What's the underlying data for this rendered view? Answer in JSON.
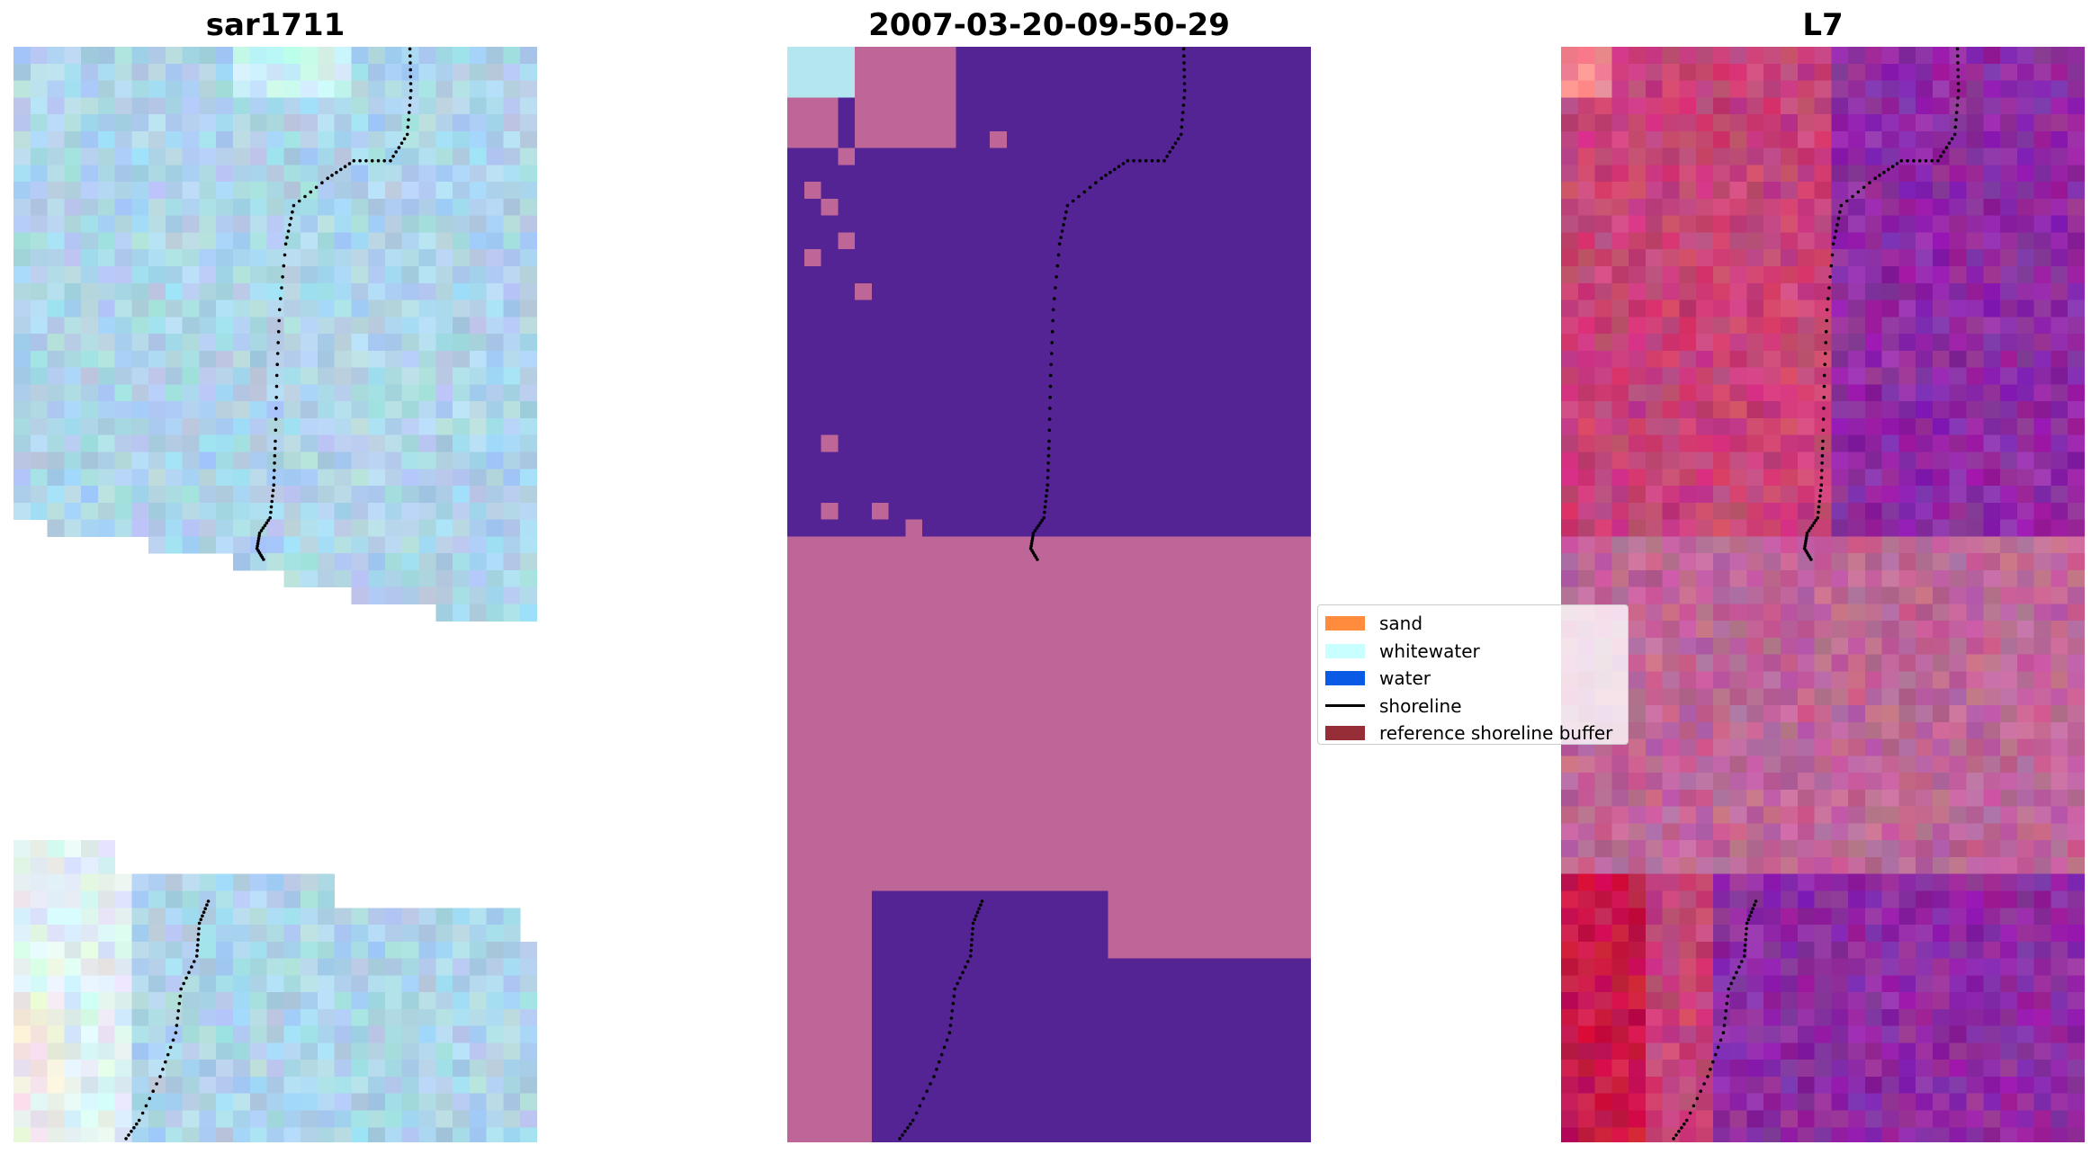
{
  "panels": [
    {
      "title": "sar1711"
    },
    {
      "title": "2007-03-20-09-50-29"
    },
    {
      "title": "L7"
    }
  ],
  "legend": [
    {
      "label": "sand",
      "color": "#ff8c3c"
    },
    {
      "label": "whitewater",
      "color": "#c8ffff"
    },
    {
      "label": "water",
      "color": "#0a5ae6"
    },
    {
      "label": "shoreline",
      "color": "#000000"
    },
    {
      "label": "reference shoreline buffer",
      "color": "#962d37"
    }
  ],
  "colors": {
    "classified_water": "#542394",
    "buffer_overlay": "#be6698",
    "whitewater": "#b4e6f0",
    "rgb_base": "#aed4ea",
    "ndwi_land": "#c84278",
    "ndwi_water": "#8f2aa4"
  }
}
